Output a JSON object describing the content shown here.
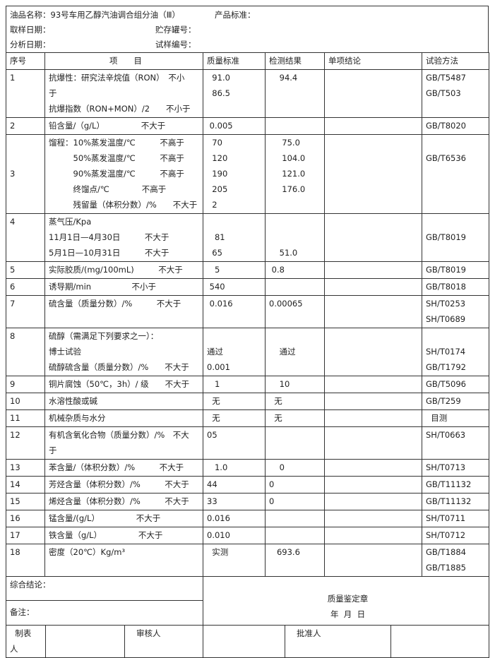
{
  "info": {
    "product_name": "油品名称：93号车用乙醇汽油调合组分油（Ⅲ）",
    "product_standard": "产品标准：",
    "sample_date": "取样日期：",
    "tank_no": "贮存罐号：",
    "analysis_date": "分析日期：",
    "sample_no": "试样编号："
  },
  "headers": [
    "序号",
    "项　　目",
    "质量标准",
    "检测结果",
    "单项结论",
    "试验方法"
  ],
  "rows": [
    {
      "no": "1",
      "item": [
        "抗爆性：研究法辛烷值（RON）　不小",
        "于",
        "抗爆指数（RON+MON）/2　　不小于"
      ],
      "standard": [
        "  91.0",
        "  86.5"
      ],
      "result": [
        "    94.4"
      ],
      "conclusion": [],
      "method": [
        "GB/T5487",
        "GB/T503"
      ]
    },
    {
      "no": "2",
      "item": [
        "铅含量/（g/L）　　　　　不大于"
      ],
      "standard": [
        " 0.005"
      ],
      "result": [],
      "conclusion": [],
      "method": [
        "GB/T8020"
      ]
    },
    {
      "no": "3",
      "item": [
        "馏程：10%蒸发温度/℃　　　不高于",
        "　　　50%蒸发温度/℃　　　不高于",
        "　　　90%蒸发温度/℃　　　不高于",
        "　　　终馏点/℃　　　　不高于",
        "　　　残留量（体积分数）/%　　不大于"
      ],
      "standard": [
        "  70",
        "  120",
        "  190",
        "  205",
        "  2"
      ],
      "result": [
        "     75.0",
        "     104.0",
        "     121.0",
        "     176.0"
      ],
      "conclusion": [],
      "method": [
        "",
        "GB/T6536"
      ]
    },
    {
      "no": "4",
      "item": [
        "蒸气压/Kpa",
        "11月1日—4月30日　　　不大于",
        "5月1日—10月31日　　　不大于"
      ],
      "standard": [
        "",
        "   81",
        "  65"
      ],
      "result": [
        "",
        "",
        "    51.0"
      ],
      "conclusion": [],
      "method": [
        "",
        "GB/T8019"
      ]
    },
    {
      "no": "5",
      "item": [
        "实际胶质/(mg/100mL)　　　不大于"
      ],
      "standard": [
        "   5"
      ],
      "result": [
        " 0.8"
      ],
      "conclusion": [],
      "method": [
        "GB/T8019"
      ]
    },
    {
      "no": "6",
      "item": [
        "诱导期/min　　　　　不小于"
      ],
      "standard": [
        " 540"
      ],
      "result": [],
      "conclusion": [],
      "method": [
        "GB/T8018"
      ]
    },
    {
      "no": "7",
      "item": [
        "硫含量（质量分数）/%　　　不大于"
      ],
      "standard": [
        " 0.016"
      ],
      "result": [
        "0.00065"
      ],
      "conclusion": [],
      "method": [
        "SH/T0253",
        "SH/T0689"
      ]
    },
    {
      "no": "8",
      "item": [
        "硫醇（需满足下列要求之一）：",
        "博士试验",
        "硫醇硫含量（质量分数）/%　　不大于"
      ],
      "standard": [
        "",
        "通过",
        "0.001"
      ],
      "result": [
        "",
        "    通过"
      ],
      "conclusion": [],
      "method": [
        "",
        "SH/T0174",
        "GB/T1792"
      ]
    },
    {
      "no": "9",
      "item": [
        "铜片腐蚀（50℃，3h）/ 级　　不大于"
      ],
      "standard": [
        "   1"
      ],
      "result": [
        "    10"
      ],
      "conclusion": [],
      "method": [
        "GB/T5096"
      ]
    },
    {
      "no": "10",
      "item": [
        "水溶性酸或碱"
      ],
      "standard": [
        "  无"
      ],
      "result": [
        "  无"
      ],
      "conclusion": [],
      "method": [
        "GB/T259"
      ]
    },
    {
      "no": "11",
      "item": [
        "机械杂质与水分"
      ],
      "standard": [
        "  无"
      ],
      "result": [
        "  无"
      ],
      "conclusion": [],
      "method": [
        "  目测"
      ]
    },
    {
      "no": "12",
      "item": [
        "有机含氧化合物（质量分数）/%　不大",
        "于"
      ],
      "standard": [
        "05"
      ],
      "result": [],
      "conclusion": [],
      "method": [
        "SH/T0663"
      ]
    },
    {
      "no": "13",
      "item": [
        "苯含量/（体积分数）/%　　　不大于"
      ],
      "standard": [
        "   1.0"
      ],
      "result": [
        "    0"
      ],
      "conclusion": [],
      "method": [
        "SH/T0713"
      ]
    },
    {
      "no": "14",
      "item": [
        "芳烃含量（体积分数）/%　　　不大于"
      ],
      "standard": [
        "44"
      ],
      "result": [
        "0"
      ],
      "conclusion": [],
      "method": [
        "GB/T11132"
      ]
    },
    {
      "no": "15",
      "item": [
        "烯烃含量（体积分数）/%　　　不大于"
      ],
      "standard": [
        "33"
      ],
      "result": [
        "0"
      ],
      "conclusion": [],
      "method": [
        "GB/T11132"
      ]
    },
    {
      "no": "16",
      "item": [
        "锰含量/(g/L）　　　　　不大于"
      ],
      "standard": [
        "0.016"
      ],
      "result": [],
      "conclusion": [],
      "method": [
        "SH/T0711"
      ]
    },
    {
      "no": "17",
      "item": [
        "铁含量（g/L）　　　　　不大于"
      ],
      "standard": [
        "0.010"
      ],
      "result": [],
      "conclusion": [],
      "method": [
        "SH/T0712"
      ]
    },
    {
      "no": "18",
      "item": [
        "密度（20℃）Kg/m³"
      ],
      "standard": [
        "  实测"
      ],
      "result": [
        "   693.6"
      ],
      "conclusion": [],
      "method": [
        "GB/T1884",
        "GB/T1885"
      ]
    }
  ],
  "footer": {
    "overall_conclusion": "综合结论：",
    "remarks": "备注：",
    "seal": "质量鉴定章",
    "date": "年  月  日",
    "prepared_by": "  制表\n人",
    "reviewed_by": "   审核人",
    "approved_by": "   批准人"
  }
}
